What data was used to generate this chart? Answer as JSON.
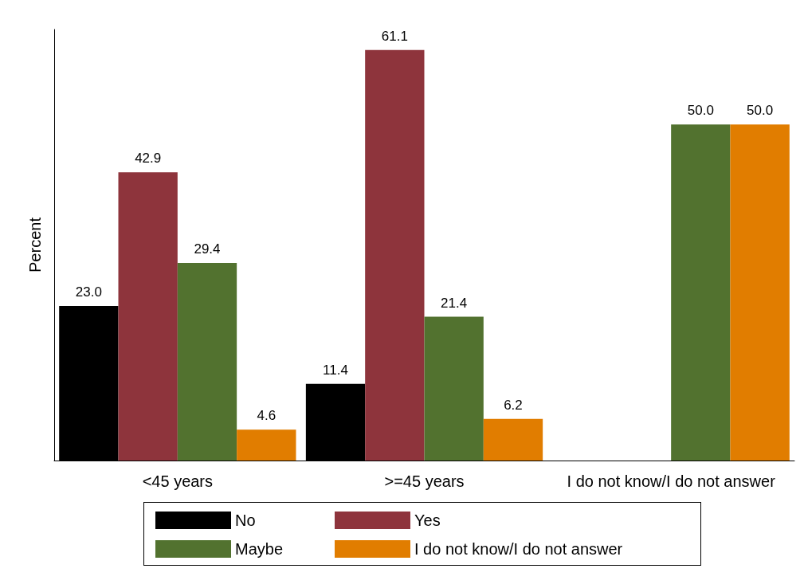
{
  "chart_data": {
    "type": "bar",
    "ylabel": "Percent",
    "categories": [
      "<45 years",
      ">=45 years",
      "I do not know/I do not answer"
    ],
    "series": [
      {
        "name": "No",
        "color": "#000000",
        "values": [
          23.0,
          11.4,
          null
        ],
        "value_labels": [
          "23.0",
          "11.4",
          null
        ]
      },
      {
        "name": "Yes",
        "color": "#8e343c",
        "values": [
          42.9,
          61.1,
          null
        ],
        "value_labels": [
          "42.9",
          "61.1",
          null
        ]
      },
      {
        "name": "Maybe",
        "color": "#52722f",
        "values": [
          29.4,
          21.4,
          50.0
        ],
        "value_labels": [
          "29.4",
          "21.4",
          "50.0"
        ]
      },
      {
        "name": "I do not know/I do not answer",
        "color": "#e17d00",
        "values": [
          4.6,
          6.2,
          50.0
        ],
        "value_labels": [
          "4.6",
          "6.2",
          "50.0"
        ]
      }
    ],
    "grid": false,
    "legend": "bottom"
  }
}
